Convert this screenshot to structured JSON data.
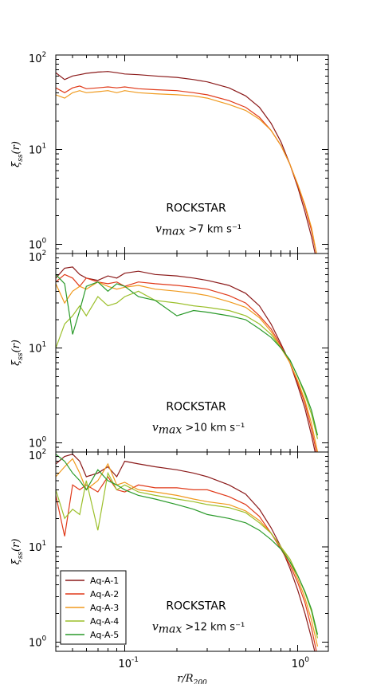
{
  "chart_data": {
    "type": "line",
    "xlabel": "r/R200",
    "ylabel": "ξss(r)",
    "xscale": "log",
    "yscale": "log",
    "xlim": [
      0.04,
      1.5
    ],
    "ylim": [
      0.8,
      100
    ],
    "legend": {
      "placement": "bottom-left",
      "entries": [
        "Aq-A-1",
        "Aq-A-2",
        "Aq-A-3",
        "Aq-A-4",
        "Aq-A-5"
      ]
    },
    "colors": {
      "Aq-A-1": "#8b1a1a",
      "Aq-A-2": "#e03a1a",
      "Aq-A-3": "#f09a1e",
      "Aq-A-4": "#9bbf2a",
      "Aq-A-5": "#2a9a2a"
    },
    "panels": [
      {
        "title": "ROCKSTAR",
        "vmax_text": ">7 km s⁻¹",
        "series": [
          {
            "name": "Aq-A-1",
            "x": [
              0.04,
              0.045,
              0.05,
              0.055,
              0.06,
              0.07,
              0.08,
              0.09,
              0.1,
              0.12,
              0.15,
              0.2,
              0.25,
              0.3,
              0.4,
              0.5,
              0.6,
              0.7,
              0.8,
              0.9,
              1.0,
              1.1,
              1.2,
              1.3
            ],
            "y": [
              65,
              55,
              60,
              62,
              64,
              66,
              67,
              65,
              63,
              62,
              60,
              58,
              55,
              52,
              45,
              37,
              28,
              19,
              12,
              7,
              4,
              2.2,
              1.2,
              0.6
            ]
          },
          {
            "name": "Aq-A-2",
            "x": [
              0.04,
              0.045,
              0.05,
              0.055,
              0.06,
              0.07,
              0.08,
              0.09,
              0.1,
              0.12,
              0.15,
              0.2,
              0.25,
              0.3,
              0.4,
              0.5,
              0.6,
              0.7,
              0.8,
              0.9,
              1.0,
              1.1,
              1.2,
              1.3
            ],
            "y": [
              45,
              40,
              45,
              47,
              44,
              45,
              46,
              45,
              46,
              44,
              43,
              42,
              40,
              38,
              33,
              28,
              22,
              16,
              11,
              7,
              4.2,
              2.5,
              1.4,
              0.7
            ]
          },
          {
            "name": "Aq-A-3",
            "x": [
              0.04,
              0.045,
              0.05,
              0.055,
              0.06,
              0.07,
              0.08,
              0.09,
              0.1,
              0.12,
              0.15,
              0.2,
              0.25,
              0.3,
              0.4,
              0.5,
              0.6,
              0.7,
              0.8,
              0.9,
              1.0,
              1.1,
              1.2,
              1.3
            ],
            "y": [
              38,
              35,
              40,
              42,
              40,
              41,
              42,
              40,
              42,
              40,
              39,
              38,
              37,
              35,
              30,
              26,
              21,
              16,
              11,
              7,
              4.3,
              2.6,
              1.5,
              0.7
            ]
          }
        ]
      },
      {
        "title": "ROCKSTAR",
        "vmax_text": ">10 km s⁻¹",
        "series": [
          {
            "name": "Aq-A-1",
            "x": [
              0.04,
              0.045,
              0.05,
              0.055,
              0.06,
              0.07,
              0.08,
              0.09,
              0.1,
              0.12,
              0.15,
              0.2,
              0.25,
              0.3,
              0.4,
              0.5,
              0.6,
              0.7,
              0.8,
              0.9,
              1.0,
              1.1,
              1.2,
              1.3
            ],
            "y": [
              55,
              70,
              72,
              60,
              55,
              52,
              58,
              55,
              62,
              65,
              60,
              58,
              55,
              52,
              46,
              38,
              28,
              18,
              11,
              7,
              4,
              2.3,
              1.2,
              0.6
            ]
          },
          {
            "name": "Aq-A-2",
            "x": [
              0.04,
              0.045,
              0.05,
              0.055,
              0.06,
              0.07,
              0.08,
              0.09,
              0.1,
              0.12,
              0.15,
              0.2,
              0.25,
              0.3,
              0.4,
              0.5,
              0.6,
              0.7,
              0.8,
              0.9,
              1.0,
              1.1,
              1.2,
              1.3
            ],
            "y": [
              50,
              60,
              55,
              45,
              55,
              50,
              48,
              50,
              45,
              50,
              48,
              46,
              44,
              42,
              36,
              30,
              22,
              16,
              10.5,
              7,
              4.3,
              2.6,
              1.4,
              0.7
            ]
          },
          {
            "name": "Aq-A-3",
            "x": [
              0.04,
              0.045,
              0.05,
              0.055,
              0.06,
              0.07,
              0.08,
              0.09,
              0.1,
              0.12,
              0.15,
              0.2,
              0.25,
              0.3,
              0.4,
              0.5,
              0.6,
              0.7,
              0.8,
              0.9,
              1.0,
              1.1,
              1.2,
              1.3
            ],
            "y": [
              48,
              30,
              40,
              45,
              42,
              50,
              45,
              42,
              44,
              46,
              42,
              40,
              38,
              36,
              31,
              27,
              21,
              15,
              10,
              7,
              4.5,
              2.8,
              1.6,
              0.8
            ]
          },
          {
            "name": "Aq-A-4",
            "x": [
              0.04,
              0.045,
              0.05,
              0.055,
              0.06,
              0.07,
              0.08,
              0.09,
              0.1,
              0.12,
              0.15,
              0.2,
              0.25,
              0.3,
              0.4,
              0.5,
              0.6,
              0.7,
              0.8,
              0.9,
              1.0,
              1.1,
              1.2,
              1.3
            ],
            "y": [
              10,
              18,
              22,
              28,
              22,
              35,
              28,
              30,
              35,
              40,
              32,
              30,
              28,
              27,
              25,
              22,
              18,
              14,
              10,
              7.5,
              5,
              3.2,
              2,
              1.1
            ]
          },
          {
            "name": "Aq-A-5",
            "x": [
              0.04,
              0.045,
              0.05,
              0.055,
              0.06,
              0.07,
              0.08,
              0.09,
              0.1,
              0.12,
              0.15,
              0.2,
              0.25,
              0.3,
              0.4,
              0.5,
              0.6,
              0.7,
              0.8,
              0.9,
              1.0,
              1.1,
              1.2,
              1.3
            ],
            "y": [
              60,
              48,
              14,
              25,
              45,
              50,
              40,
              48,
              45,
              35,
              32,
              22,
              25,
              24,
              22,
              20,
              16,
              13,
              10,
              7.5,
              5,
              3.4,
              2.2,
              1.2
            ]
          }
        ]
      },
      {
        "title": "ROCKSTAR",
        "vmax_text": ">12 km s⁻¹",
        "series": [
          {
            "name": "Aq-A-1",
            "x": [
              0.04,
              0.045,
              0.05,
              0.055,
              0.06,
              0.07,
              0.08,
              0.09,
              0.1,
              0.12,
              0.15,
              0.2,
              0.25,
              0.3,
              0.4,
              0.5,
              0.6,
              0.7,
              0.8,
              0.9,
              1.0,
              1.1,
              1.2,
              1.3
            ],
            "y": [
              75,
              90,
              95,
              80,
              55,
              60,
              70,
              55,
              80,
              75,
              70,
              65,
              60,
              55,
              45,
              36,
              25,
              16,
              10,
              6,
              3.5,
              2,
              1.1,
              0.6
            ]
          },
          {
            "name": "Aq-A-2",
            "x": [
              0.04,
              0.045,
              0.05,
              0.055,
              0.06,
              0.07,
              0.08,
              0.09,
              0.1,
              0.12,
              0.15,
              0.2,
              0.25,
              0.3,
              0.4,
              0.5,
              0.6,
              0.7,
              0.8,
              0.9,
              1.0,
              1.1,
              1.2,
              1.3
            ],
            "y": [
              35,
              13,
              45,
              40,
              45,
              38,
              55,
              40,
              38,
              45,
              42,
              42,
              40,
              40,
              34,
              28,
              21,
              14,
              9.5,
              6.5,
              4.2,
              2.6,
              1.4,
              0.7
            ]
          },
          {
            "name": "Aq-A-3",
            "x": [
              0.04,
              0.045,
              0.05,
              0.055,
              0.06,
              0.07,
              0.08,
              0.09,
              0.1,
              0.12,
              0.15,
              0.2,
              0.25,
              0.3,
              0.4,
              0.5,
              0.6,
              0.7,
              0.8,
              0.9,
              1.0,
              1.1,
              1.2,
              1.3
            ],
            "y": [
              55,
              70,
              85,
              60,
              40,
              50,
              75,
              45,
              48,
              40,
              38,
              35,
              32,
              30,
              28,
              24,
              19,
              14,
              10,
              7,
              4.6,
              2.9,
              1.7,
              0.9
            ]
          },
          {
            "name": "Aq-A-4",
            "x": [
              0.04,
              0.045,
              0.05,
              0.055,
              0.06,
              0.07,
              0.08,
              0.09,
              0.1,
              0.12,
              0.15,
              0.2,
              0.25,
              0.3,
              0.4,
              0.5,
              0.6,
              0.7,
              0.8,
              0.9,
              1.0,
              1.1,
              1.2,
              1.3
            ],
            "y": [
              40,
              20,
              25,
              22,
              50,
              15,
              60,
              40,
              45,
              38,
              35,
              32,
              30,
              28,
              26,
              23,
              18,
              14,
              10,
              7.5,
              5,
              3.3,
              2.1,
              1.1
            ]
          },
          {
            "name": "Aq-A-5",
            "x": [
              0.04,
              0.045,
              0.05,
              0.055,
              0.06,
              0.07,
              0.08,
              0.09,
              0.1,
              0.12,
              0.15,
              0.2,
              0.25,
              0.3,
              0.4,
              0.5,
              0.6,
              0.7,
              0.8,
              0.9,
              1.0,
              1.1,
              1.2,
              1.3
            ],
            "y": [
              95,
              80,
              60,
              50,
              40,
              65,
              50,
              45,
              40,
              35,
              32,
              28,
              25,
              22,
              20,
              18,
              15,
              12,
              9.5,
              7,
              5,
              3.4,
              2.2,
              1.2
            ]
          }
        ]
      }
    ]
  }
}
